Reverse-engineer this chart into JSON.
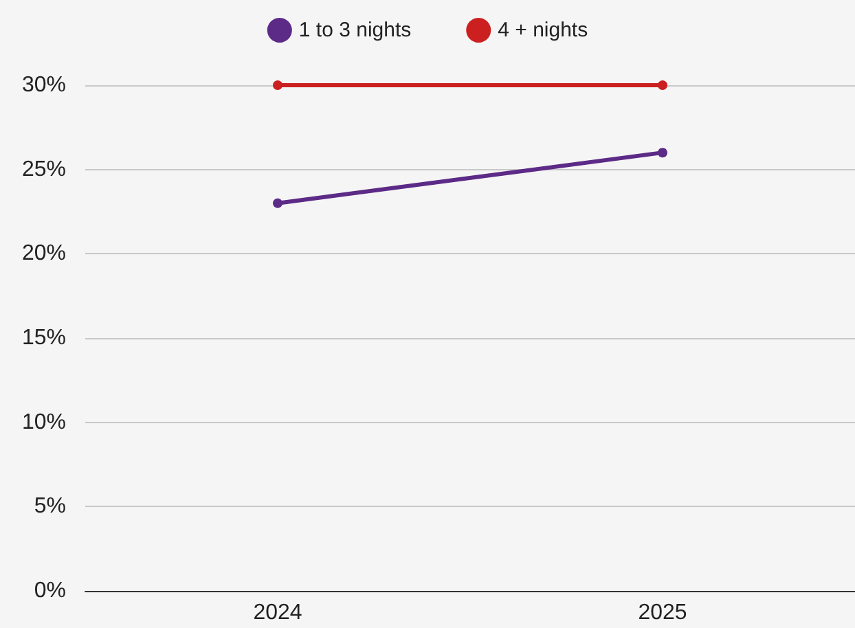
{
  "chart_data": {
    "type": "line",
    "categories": [
      "2024",
      "2025"
    ],
    "series": [
      {
        "name": "1 to 3 nights",
        "color": "#5c2a87",
        "values": [
          23,
          26
        ]
      },
      {
        "name": "4 + nights",
        "color": "#cc1f1f",
        "values": [
          30,
          30
        ]
      }
    ],
    "ylim": [
      0,
      30
    ],
    "yticks": [
      {
        "value": 0,
        "label": "0%"
      },
      {
        "value": 5,
        "label": "5%"
      },
      {
        "value": 10,
        "label": "10%"
      },
      {
        "value": 15,
        "label": "15%"
      },
      {
        "value": 20,
        "label": "20%"
      },
      {
        "value": 25,
        "label": "25%"
      },
      {
        "value": 30,
        "label": "30%"
      }
    ],
    "grid": "y",
    "legend": "top",
    "marker": "circle",
    "line_style": "solid"
  }
}
